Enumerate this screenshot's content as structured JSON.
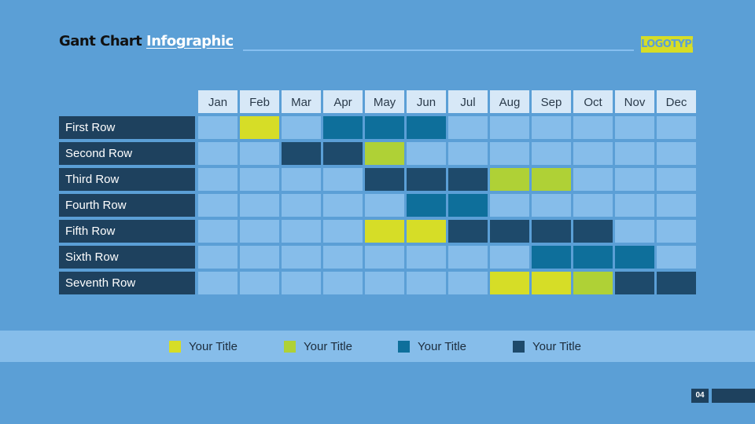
{
  "header": {
    "title_part1": "Gant Chart",
    "title_part2": "Infographic",
    "logo": "LOGOTYPE"
  },
  "colors": {
    "background": "#5b9fd6",
    "empty_cell": "#86bdea",
    "month_header": "#d7e8f7",
    "row_label_bg": "#1e415e"
  },
  "chart_data": {
    "type": "table",
    "months": [
      "Jan",
      "Feb",
      "Mar",
      "Apr",
      "May",
      "Jun",
      "Jul",
      "Aug",
      "Sep",
      "Oct",
      "Nov",
      "Dec"
    ],
    "rows": [
      {
        "label": "First Row",
        "cells": [
          0,
          1,
          0,
          3,
          3,
          3,
          0,
          0,
          0,
          0,
          0,
          0
        ]
      },
      {
        "label": "Second Row",
        "cells": [
          0,
          0,
          4,
          4,
          2,
          0,
          0,
          0,
          0,
          0,
          0,
          0
        ]
      },
      {
        "label": "Third Row",
        "cells": [
          0,
          0,
          0,
          0,
          4,
          4,
          4,
          2,
          2,
          0,
          0,
          0
        ]
      },
      {
        "label": "Fourth Row",
        "cells": [
          0,
          0,
          0,
          0,
          0,
          3,
          3,
          0,
          0,
          0,
          0,
          0
        ]
      },
      {
        "label": "Fifth Row",
        "cells": [
          0,
          0,
          0,
          0,
          1,
          1,
          4,
          4,
          4,
          4,
          0,
          0
        ]
      },
      {
        "label": "Sixth Row",
        "cells": [
          0,
          0,
          0,
          0,
          0,
          0,
          0,
          0,
          3,
          3,
          3,
          0
        ]
      },
      {
        "label": "Seventh Row",
        "cells": [
          0,
          0,
          0,
          0,
          0,
          0,
          0,
          1,
          1,
          2,
          4,
          4
        ]
      }
    ],
    "categories": [
      {
        "id": 1,
        "name": "Your Title",
        "color": "#d6dd27"
      },
      {
        "id": 2,
        "name": "Your Title",
        "color": "#afd136"
      },
      {
        "id": 3,
        "name": "Your Title",
        "color": "#0e6f9b"
      },
      {
        "id": 4,
        "name": "Your Title",
        "color": "#1e4a6b"
      }
    ]
  },
  "footer": {
    "page_number": "04"
  }
}
